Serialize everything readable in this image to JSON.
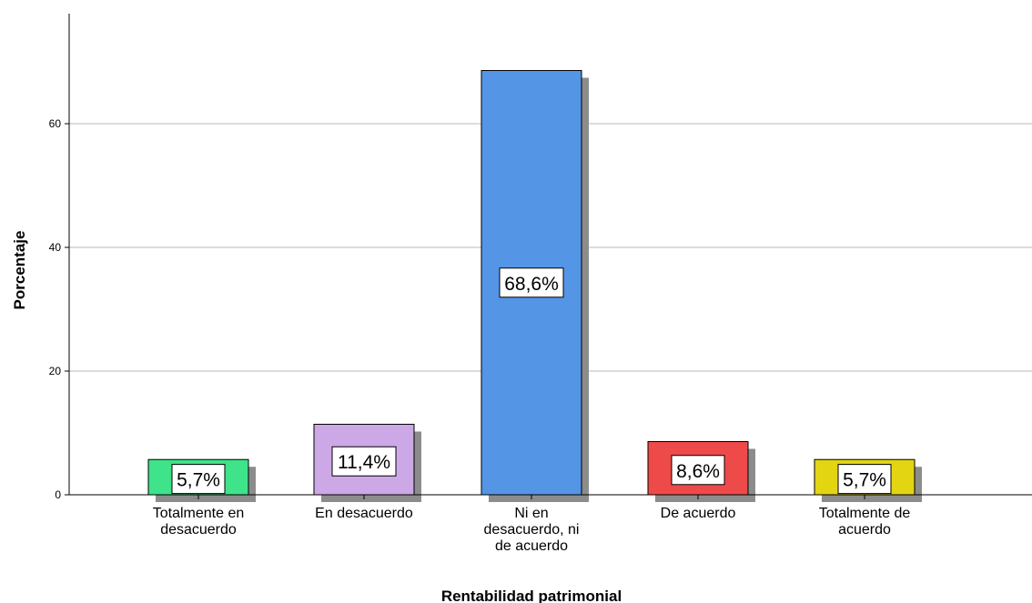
{
  "chart_data": {
    "type": "bar",
    "xlabel": "Rentabilidad patrimonial",
    "ylabel": "Porcentaje",
    "categories": [
      [
        "Totalmente en",
        "desacuerdo"
      ],
      [
        "En desacuerdo"
      ],
      [
        "Ni en",
        "desacuerdo, ni",
        "de acuerdo"
      ],
      [
        "De acuerdo"
      ],
      [
        "Totalmente de",
        "acuerdo"
      ]
    ],
    "values": [
      5.7,
      11.4,
      68.6,
      8.6,
      5.7
    ],
    "data_labels": [
      "5,7%",
      "11,4%",
      "68,6%",
      "8,6%",
      "5,7%"
    ],
    "colors": [
      "#3ee38a",
      "#cda8e6",
      "#5595e6",
      "#ef4a4a",
      "#e3d512"
    ],
    "yticks": [
      0,
      20,
      40,
      60
    ],
    "ylim": [
      0,
      77
    ],
    "grid": true
  }
}
